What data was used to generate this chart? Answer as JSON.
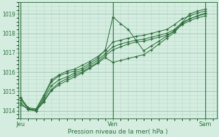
{
  "background_color": "#d4ede0",
  "grid_color_major": "#9ec4b0",
  "grid_color_minor": "#b8d8c8",
  "line_color": "#2d6e3a",
  "marker": "+",
  "xlabel": "Pression niveau de la mer( hPa )",
  "xtick_labels": [
    "Jeu",
    "Ven",
    "Sam"
  ],
  "xtick_positions": [
    0,
    12,
    24
  ],
  "ylim_min": 1013.6,
  "ylim_max": 1019.6,
  "xlim_min": -0.3,
  "xlim_max": 25.5,
  "ylabel_ticks": [
    1014,
    1015,
    1016,
    1017,
    1018,
    1019
  ],
  "series": {
    "x": [
      0,
      1,
      2,
      3,
      4,
      5,
      6,
      7,
      8,
      9,
      10,
      11,
      12,
      13,
      14,
      15,
      16,
      17,
      18,
      19,
      20,
      21,
      22,
      23,
      24
    ],
    "lines": [
      [
        1014.7,
        1014.1,
        1014.05,
        1014.7,
        1015.5,
        1015.8,
        1015.95,
        1016.05,
        1016.2,
        1016.45,
        1016.7,
        1017.15,
        1018.85,
        1018.5,
        1018.2,
        1017.65,
        1017.1,
        1017.35,
        1017.6,
        1017.85,
        1018.15,
        1018.55,
        1019.0,
        1019.15,
        1019.25
      ],
      [
        1014.55,
        1014.1,
        1014.0,
        1014.6,
        1015.3,
        1015.6,
        1015.75,
        1015.95,
        1016.1,
        1016.35,
        1016.6,
        1016.95,
        1017.3,
        1017.45,
        1017.55,
        1017.65,
        1017.7,
        1017.8,
        1017.9,
        1018.0,
        1018.2,
        1018.55,
        1018.75,
        1018.9,
        1019.0
      ],
      [
        1014.4,
        1014.05,
        1014.0,
        1014.5,
        1015.1,
        1015.45,
        1015.65,
        1015.85,
        1016.0,
        1016.25,
        1016.5,
        1016.85,
        1017.15,
        1017.3,
        1017.45,
        1017.55,
        1017.6,
        1017.7,
        1017.8,
        1017.9,
        1018.1,
        1018.45,
        1018.65,
        1018.8,
        1018.9
      ],
      [
        1014.65,
        1014.15,
        1014.1,
        1014.8,
        1015.6,
        1015.85,
        1016.05,
        1016.15,
        1016.35,
        1016.55,
        1016.8,
        1017.1,
        1017.55,
        1017.65,
        1017.75,
        1017.85,
        1017.9,
        1018.0,
        1018.1,
        1018.2,
        1018.45,
        1018.75,
        1018.9,
        1019.05,
        1019.15
      ],
      [
        1014.3,
        1014.1,
        1014.0,
        1014.45,
        1015.05,
        1015.35,
        1015.55,
        1015.75,
        1015.95,
        1016.2,
        1016.45,
        1016.75,
        1016.5,
        1016.6,
        1016.7,
        1016.8,
        1016.9,
        1017.15,
        1017.45,
        1017.75,
        1018.05,
        1018.5,
        1018.75,
        1018.9,
        1019.05
      ]
    ]
  },
  "figsize": [
    3.2,
    2.0
  ],
  "dpi": 100
}
